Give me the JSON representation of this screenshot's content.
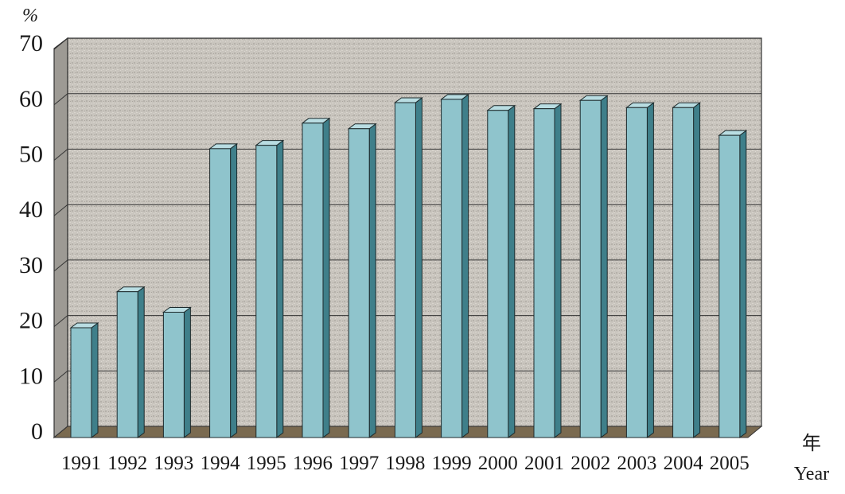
{
  "chart_data": {
    "type": "bar",
    "title": "",
    "ylabel": "%",
    "xlabel": "年",
    "xlabel_en": "Year",
    "ylim": [
      0,
      70
    ],
    "yticks": [
      0,
      10,
      20,
      30,
      40,
      50,
      60,
      70
    ],
    "grid": true,
    "categories": [
      "1991",
      "1992",
      "1993",
      "1994",
      "1995",
      "1996",
      "1997",
      "1998",
      "1999",
      "2000",
      "2001",
      "2002",
      "2003",
      "2004",
      "2005"
    ],
    "values": [
      19.8,
      26.3,
      22.6,
      52.1,
      52.7,
      56.7,
      55.7,
      60.4,
      61.0,
      59.0,
      59.3,
      60.8,
      59.5,
      59.5,
      54.5
    ],
    "colors": {
      "bar_front": "#8fc4cc",
      "bar_side": "#3f7f8a",
      "bar_top": "#b9dde2",
      "wall": "#c8c4bd",
      "floor": "#7a6a50"
    }
  }
}
